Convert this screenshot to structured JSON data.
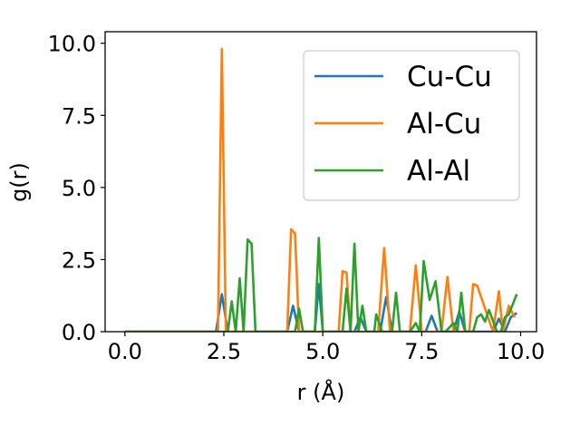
{
  "chart_data": {
    "type": "line",
    "xlabel": "r (Å)",
    "ylabel": "g(r)",
    "xlim": [
      -0.5,
      10.4
    ],
    "ylim": [
      0.0,
      10.4
    ],
    "xticks": [
      0.0,
      2.5,
      5.0,
      7.5,
      10.0
    ],
    "xtick_labels": [
      "0.0",
      "2.5",
      "5.0",
      "7.5",
      "10.0"
    ],
    "yticks": [
      0.0,
      2.5,
      5.0,
      7.5,
      10.0
    ],
    "ytick_labels": [
      "0.0",
      "2.5",
      "5.0",
      "7.5",
      "10.0"
    ],
    "grid": false,
    "legend_placement": "upper-right",
    "series": [
      {
        "name": "Cu-Cu",
        "color": "#1f77b4",
        "x": [
          0.0,
          2.3,
          2.45,
          2.6,
          4.1,
          4.25,
          4.4,
          4.8,
          4.9,
          5.0,
          5.8,
          5.95,
          6.1,
          6.45,
          6.6,
          6.75,
          7.6,
          7.75,
          7.9,
          8.3,
          8.45,
          8.6,
          9.3,
          9.45,
          9.6,
          9.75,
          9.9
        ],
        "values": [
          0.0,
          0.0,
          1.3,
          0.0,
          0.0,
          0.9,
          0.0,
          0.0,
          1.65,
          0.0,
          0.0,
          0.5,
          0.0,
          0.0,
          1.2,
          0.0,
          0.0,
          0.55,
          0.0,
          0.0,
          0.7,
          0.0,
          0.0,
          0.45,
          0.0,
          0.5,
          0.65
        ]
      },
      {
        "name": "Al-Cu",
        "color": "#ff7f0e",
        "x": [
          0.0,
          2.35,
          2.45,
          2.55,
          4.1,
          4.2,
          4.3,
          4.4,
          5.4,
          5.5,
          5.6,
          5.7,
          6.4,
          6.55,
          6.7,
          7.2,
          7.35,
          7.5,
          8.0,
          8.15,
          8.3,
          8.7,
          8.8,
          8.9,
          9.3,
          9.45,
          9.55,
          9.7,
          9.85
        ],
        "values": [
          0.0,
          0.0,
          9.8,
          0.0,
          0.0,
          3.55,
          3.4,
          0.0,
          0.0,
          2.1,
          2.05,
          0.0,
          0.0,
          2.9,
          0.0,
          0.0,
          2.3,
          0.0,
          0.0,
          1.9,
          0.0,
          0.0,
          1.65,
          1.6,
          0.0,
          1.4,
          0.0,
          0.9,
          0.5
        ]
      },
      {
        "name": "Al-Al",
        "color": "#2ca02c",
        "x": [
          0.0,
          2.6,
          2.7,
          2.8,
          2.9,
          3.0,
          3.1,
          3.2,
          3.3,
          4.3,
          4.4,
          4.5,
          4.8,
          4.9,
          5.0,
          5.5,
          5.6,
          5.7,
          5.8,
          5.9,
          6.0,
          6.1,
          6.3,
          6.35,
          6.5,
          6.75,
          6.85,
          6.95,
          7.2,
          7.35,
          7.45,
          7.55,
          7.7,
          7.85,
          8.0,
          8.1,
          8.3,
          8.4,
          8.5,
          8.6,
          8.8,
          8.9,
          9.0,
          9.1,
          9.2,
          9.4,
          9.5,
          9.6,
          9.7,
          9.8,
          9.9
        ],
        "values": [
          0.0,
          0.0,
          1.05,
          0.0,
          1.85,
          0.0,
          3.2,
          3.05,
          0.0,
          0.0,
          0.8,
          0.0,
          0.0,
          3.25,
          0.0,
          0.0,
          1.5,
          0.0,
          3.05,
          0.0,
          0.9,
          0.0,
          0.0,
          0.6,
          0.0,
          0.0,
          1.35,
          0.0,
          0.0,
          0.3,
          0.0,
          2.45,
          1.1,
          1.75,
          0.0,
          0.0,
          0.3,
          0.0,
          1.35,
          0.0,
          0.0,
          0.5,
          0.6,
          0.35,
          0.75,
          0.0,
          0.0,
          0.5,
          0.6,
          0.95,
          1.3
        ]
      }
    ]
  }
}
